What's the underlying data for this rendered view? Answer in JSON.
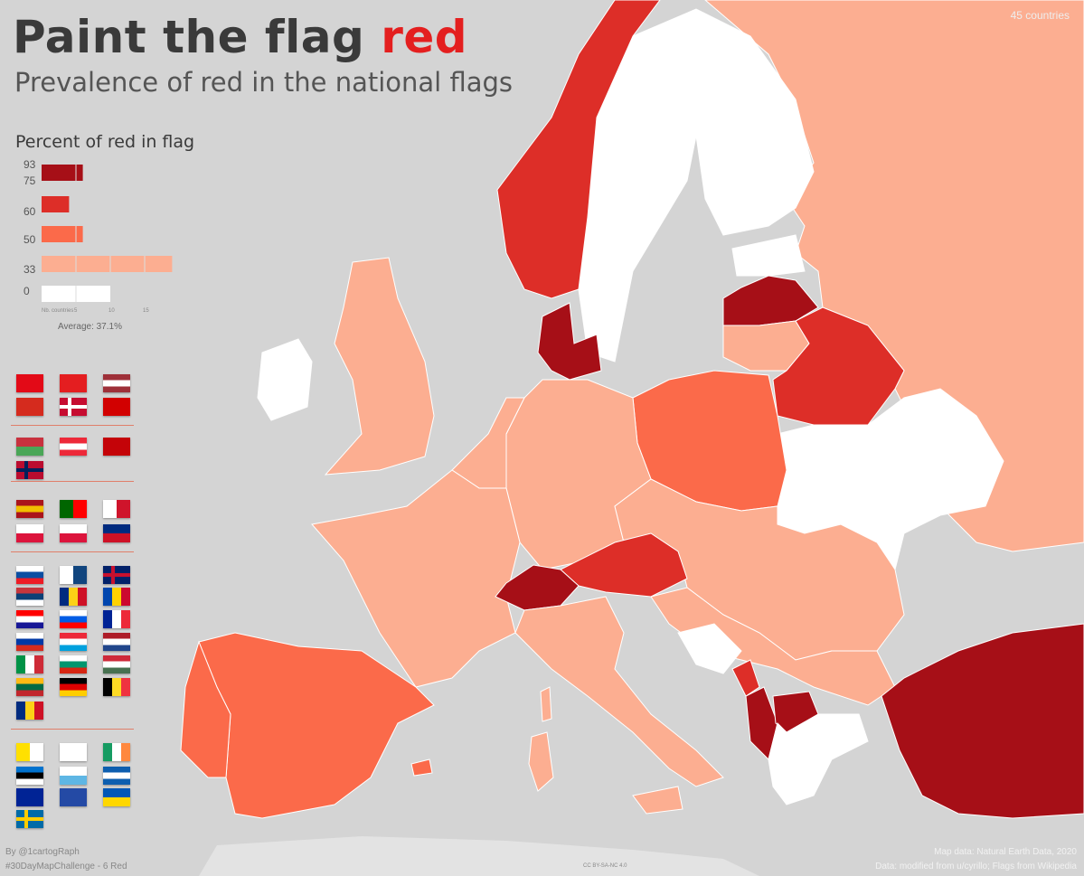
{
  "header": {
    "title_main": "Paint the flag ",
    "title_accent": "red",
    "subtitle": "Prevalence of red in the national flags",
    "country_count": "45 countries"
  },
  "legend": {
    "title": "Percent of red in flag",
    "ticks": [
      "93",
      "75",
      "60",
      "50",
      "33",
      "0"
    ],
    "axis_label": "Nb. countries",
    "axis_ticks": [
      "5",
      "10",
      "15"
    ],
    "average": "Average: 37.1%",
    "bins": [
      {
        "label": "75–93",
        "count": 6,
        "color": "#a60f17"
      },
      {
        "label": "60–75",
        "count": 4,
        "color": "#dd2e28"
      },
      {
        "label": "50–60",
        "count": 6,
        "color": "#fb6a4a"
      },
      {
        "label": "33–50",
        "count": 19,
        "color": "#fcae91"
      },
      {
        "label": "0–33",
        "count": 10,
        "color": "#ffffff"
      }
    ]
  },
  "colors": {
    "background": "#d4d4d4",
    "sea": "#d4d4d4",
    "land_outside": "#e3e3e3",
    "c93": "#a60f17",
    "c75": "#dd2e28",
    "c60": "#fb6a4a",
    "c50": "#fcae91",
    "c33": "#ffffff",
    "accent": "#e41f1f"
  },
  "credits": {
    "author": "By @1cartogRaph",
    "challenge": "#30DayMapChallenge - 6 Red",
    "license": "CC BY-SA-NC 4.0",
    "mapdata": "Map data: Natural Earth Data, 2020",
    "data": "Data: modified from u/cyrillo; Flags from Wikipedia"
  }
}
